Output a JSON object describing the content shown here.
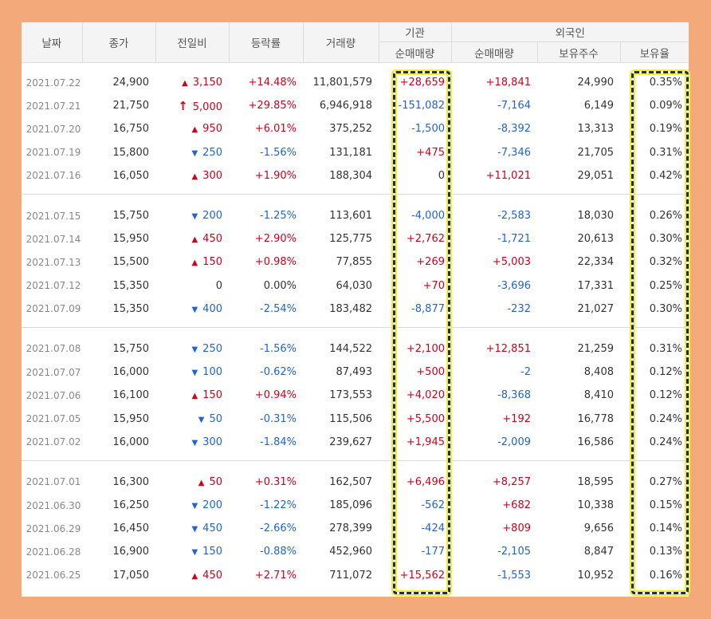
{
  "header": {
    "date": "날짜",
    "close": "종가",
    "change": "전일비",
    "rate": "등락률",
    "volume": "거래량",
    "inst_group": "기관",
    "inst_net": "순매매량",
    "foreign_group": "외국인",
    "foreign_net": "순매매량",
    "foreign_hold": "보유주수",
    "foreign_ratio": "보유율"
  },
  "colors": {
    "up": "#d0021b",
    "down": "#1f63d6",
    "background": "#f3a97a",
    "highlight": "#f3ef2a"
  },
  "groups": [
    {
      "rows": [
        {
          "date": "2021.07.22",
          "close": "24,900",
          "dir": "up",
          "change": "3,150",
          "rate": "+14.48%",
          "volume": "11,801,579",
          "inst": "+28,659",
          "foreign": "+18,841",
          "hold": "24,990",
          "ratio": "0.35%"
        },
        {
          "date": "2021.07.21",
          "close": "21,750",
          "dir": "limit",
          "change": "5,000",
          "rate": "+29.85%",
          "volume": "6,946,918",
          "inst": "-151,082",
          "foreign": "-7,164",
          "hold": "6,149",
          "ratio": "0.09%"
        },
        {
          "date": "2021.07.20",
          "close": "16,750",
          "dir": "up",
          "change": "950",
          "rate": "+6.01%",
          "volume": "375,252",
          "inst": "-1,500",
          "foreign": "-8,392",
          "hold": "13,313",
          "ratio": "0.19%"
        },
        {
          "date": "2021.07.19",
          "close": "15,800",
          "dir": "down",
          "change": "250",
          "rate": "-1.56%",
          "volume": "131,181",
          "inst": "+475",
          "foreign": "-7,346",
          "hold": "21,705",
          "ratio": "0.31%"
        },
        {
          "date": "2021.07.16",
          "close": "16,050",
          "dir": "up",
          "change": "300",
          "rate": "+1.90%",
          "volume": "188,304",
          "inst": "0",
          "foreign": "+11,021",
          "hold": "29,051",
          "ratio": "0.42%"
        }
      ]
    },
    {
      "rows": [
        {
          "date": "2021.07.15",
          "close": "15,750",
          "dir": "down",
          "change": "200",
          "rate": "-1.25%",
          "volume": "113,601",
          "inst": "-4,000",
          "foreign": "-2,583",
          "hold": "18,030",
          "ratio": "0.26%"
        },
        {
          "date": "2021.07.14",
          "close": "15,950",
          "dir": "up",
          "change": "450",
          "rate": "+2.90%",
          "volume": "125,775",
          "inst": "+2,762",
          "foreign": "-1,721",
          "hold": "20,613",
          "ratio": "0.30%"
        },
        {
          "date": "2021.07.13",
          "close": "15,500",
          "dir": "up",
          "change": "150",
          "rate": "+0.98%",
          "volume": "77,855",
          "inst": "+269",
          "foreign": "+5,003",
          "hold": "22,334",
          "ratio": "0.32%"
        },
        {
          "date": "2021.07.12",
          "close": "15,350",
          "dir": "flat",
          "change": "0",
          "rate": "0.00%",
          "volume": "64,030",
          "inst": "+70",
          "foreign": "-3,696",
          "hold": "17,331",
          "ratio": "0.25%"
        },
        {
          "date": "2021.07.09",
          "close": "15,350",
          "dir": "down",
          "change": "400",
          "rate": "-2.54%",
          "volume": "183,482",
          "inst": "-8,877",
          "foreign": "-232",
          "hold": "21,027",
          "ratio": "0.30%"
        }
      ]
    },
    {
      "rows": [
        {
          "date": "2021.07.08",
          "close": "15,750",
          "dir": "down",
          "change": "250",
          "rate": "-1.56%",
          "volume": "144,522",
          "inst": "+2,100",
          "foreign": "+12,851",
          "hold": "21,259",
          "ratio": "0.31%"
        },
        {
          "date": "2021.07.07",
          "close": "16,000",
          "dir": "down",
          "change": "100",
          "rate": "-0.62%",
          "volume": "87,493",
          "inst": "+500",
          "foreign": "-2",
          "hold": "8,408",
          "ratio": "0.12%"
        },
        {
          "date": "2021.07.06",
          "close": "16,100",
          "dir": "up",
          "change": "150",
          "rate": "+0.94%",
          "volume": "173,553",
          "inst": "+4,020",
          "foreign": "-8,368",
          "hold": "8,410",
          "ratio": "0.12%"
        },
        {
          "date": "2021.07.05",
          "close": "15,950",
          "dir": "down",
          "change": "50",
          "rate": "-0.31%",
          "volume": "115,506",
          "inst": "+5,500",
          "foreign": "+192",
          "hold": "16,778",
          "ratio": "0.24%"
        },
        {
          "date": "2021.07.02",
          "close": "16,000",
          "dir": "down",
          "change": "300",
          "rate": "-1.84%",
          "volume": "239,627",
          "inst": "+1,945",
          "foreign": "-2,009",
          "hold": "16,586",
          "ratio": "0.24%"
        }
      ]
    },
    {
      "rows": [
        {
          "date": "2021.07.01",
          "close": "16,300",
          "dir": "up",
          "change": "50",
          "rate": "+0.31%",
          "volume": "162,507",
          "inst": "+6,496",
          "foreign": "+8,257",
          "hold": "18,595",
          "ratio": "0.27%"
        },
        {
          "date": "2021.06.30",
          "close": "16,250",
          "dir": "down",
          "change": "200",
          "rate": "-1.22%",
          "volume": "185,096",
          "inst": "-562",
          "foreign": "+682",
          "hold": "10,338",
          "ratio": "0.15%"
        },
        {
          "date": "2021.06.29",
          "close": "16,450",
          "dir": "down",
          "change": "450",
          "rate": "-2.66%",
          "volume": "278,399",
          "inst": "-424",
          "foreign": "+809",
          "hold": "9,656",
          "ratio": "0.14%"
        },
        {
          "date": "2021.06.28",
          "close": "16,900",
          "dir": "down",
          "change": "150",
          "rate": "-0.88%",
          "volume": "452,960",
          "inst": "-177",
          "foreign": "-2,105",
          "hold": "8,847",
          "ratio": "0.13%"
        },
        {
          "date": "2021.06.25",
          "close": "17,050",
          "dir": "up",
          "change": "450",
          "rate": "+2.71%",
          "volume": "711,072",
          "inst": "+15,562",
          "foreign": "-1,553",
          "hold": "10,952",
          "ratio": "0.16%"
        }
      ]
    }
  ]
}
